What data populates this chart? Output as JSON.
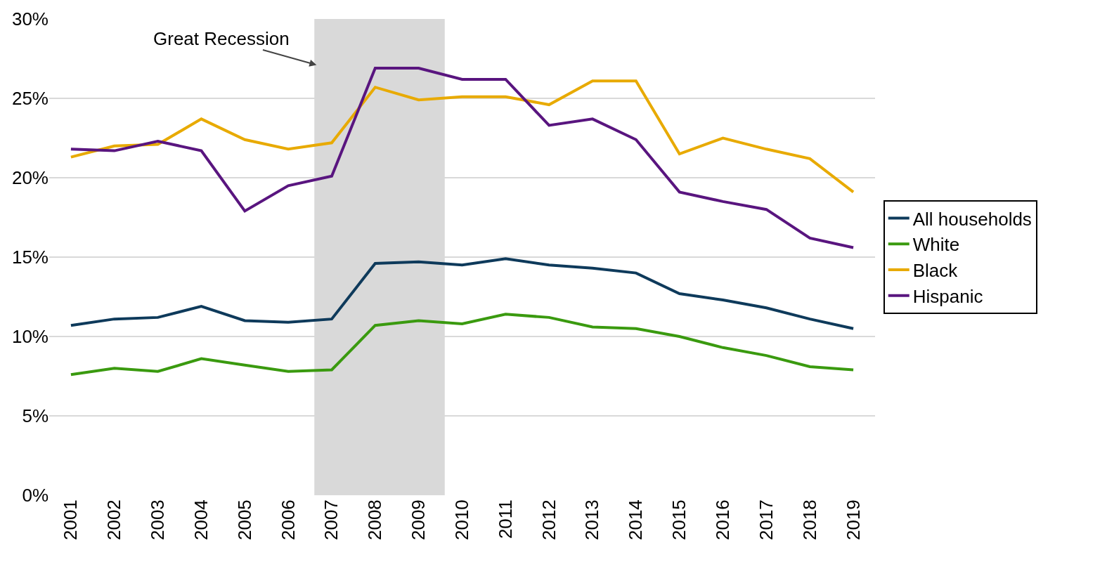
{
  "chart_data": {
    "type": "line",
    "x": [
      2001,
      2002,
      2003,
      2004,
      2005,
      2006,
      2007,
      2008,
      2009,
      2010,
      2011,
      2012,
      2013,
      2014,
      2015,
      2016,
      2017,
      2018,
      2019
    ],
    "series": [
      {
        "name": "All households",
        "color": "#0e3a5b",
        "values": [
          10.7,
          11.1,
          11.2,
          11.9,
          11.0,
          10.9,
          11.1,
          14.6,
          14.7,
          14.5,
          14.9,
          14.5,
          14.3,
          14.0,
          12.7,
          12.3,
          11.8,
          11.1,
          10.5
        ]
      },
      {
        "name": "White",
        "color": "#3a9a0f",
        "values": [
          7.6,
          8.0,
          7.8,
          8.6,
          8.2,
          7.8,
          7.9,
          10.7,
          11.0,
          10.8,
          11.4,
          11.2,
          10.6,
          10.5,
          10.0,
          9.3,
          8.8,
          8.1,
          7.9
        ]
      },
      {
        "name": "Black",
        "color": "#e8aa00",
        "values": [
          21.3,
          22.0,
          22.1,
          23.7,
          22.4,
          21.8,
          22.2,
          25.7,
          24.9,
          25.1,
          25.1,
          24.6,
          26.1,
          26.1,
          21.5,
          22.5,
          21.8,
          21.2,
          19.1
        ]
      },
      {
        "name": "Hispanic",
        "color": "#59157f",
        "values": [
          21.8,
          21.7,
          22.3,
          21.7,
          17.9,
          19.5,
          20.1,
          26.9,
          26.9,
          26.2,
          26.2,
          23.3,
          23.7,
          22.4,
          19.1,
          18.5,
          18.0,
          16.2,
          15.6
        ]
      }
    ],
    "xlim": [
      2000.5,
      2019.5
    ],
    "xticks": [
      2001,
      2002,
      2003,
      2004,
      2005,
      2006,
      2007,
      2008,
      2009,
      2010,
      2011,
      2012,
      2013,
      2014,
      2015,
      2016,
      2017,
      2018,
      2019
    ],
    "ylim": [
      0,
      30
    ],
    "yticks": [
      {
        "value": 0,
        "label": "0%"
      },
      {
        "value": 5,
        "label": "5%"
      },
      {
        "value": 10,
        "label": "10%"
      },
      {
        "value": 15,
        "label": "15%"
      },
      {
        "value": 20,
        "label": "20%"
      },
      {
        "value": 25,
        "label": "25%"
      },
      {
        "value": 30,
        "label": "30%"
      }
    ],
    "bands": [
      {
        "axis": "x",
        "from": 2006.6,
        "to": 2009.6,
        "color": "#d9d9d9"
      }
    ],
    "annotations": [
      {
        "text": "Great Recession",
        "x": 2006.65,
        "y": 27.1
      }
    ],
    "grid": "y",
    "legend": "right",
    "marker": "none",
    "line_style": "solid"
  }
}
